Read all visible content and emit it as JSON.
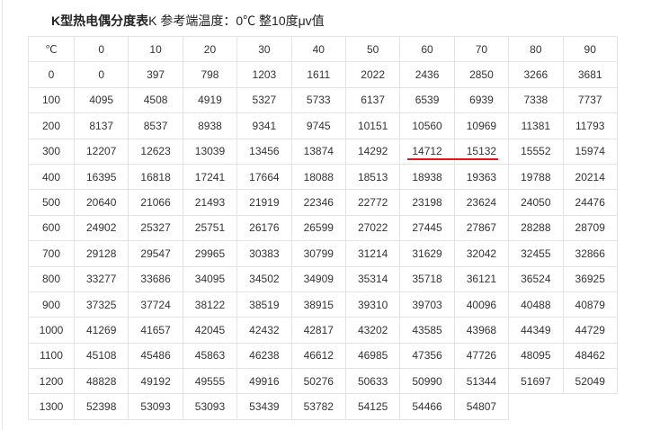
{
  "title": {
    "bold": "K型热电偶分度表",
    "rest": "K 参考端温度：0℃ 整10度μv值"
  },
  "table": {
    "header": [
      "℃",
      "0",
      "10",
      "20",
      "30",
      "40",
      "50",
      "60",
      "70",
      "80",
      "90"
    ],
    "rows": [
      [
        "0",
        "0",
        "397",
        "798",
        "1203",
        "1611",
        "2022",
        "2436",
        "2850",
        "3266",
        "3681"
      ],
      [
        "100",
        "4095",
        "4508",
        "4919",
        "5327",
        "5733",
        "6137",
        "6539",
        "6939",
        "7338",
        "7737"
      ],
      [
        "200",
        "8137",
        "8537",
        "8938",
        "9341",
        "9745",
        "10151",
        "10560",
        "10969",
        "11381",
        "11793"
      ],
      [
        "300",
        "12207",
        "12623",
        "13039",
        "13456",
        "13874",
        "14292",
        "14712",
        "15132",
        "15552",
        "15974"
      ],
      [
        "400",
        "16395",
        "16818",
        "17241",
        "17664",
        "18088",
        "18513",
        "18938",
        "19363",
        "19788",
        "20214"
      ],
      [
        "500",
        "20640",
        "21066",
        "21493",
        "21919",
        "22346",
        "22772",
        "23198",
        "23624",
        "24050",
        "24476"
      ],
      [
        "600",
        "24902",
        "25327",
        "25751",
        "26176",
        "26599",
        "27022",
        "27445",
        "27867",
        "28288",
        "28709"
      ],
      [
        "700",
        "29128",
        "29547",
        "29965",
        "30383",
        "30799",
        "31214",
        "31629",
        "32042",
        "32455",
        "32866"
      ],
      [
        "800",
        "33277",
        "33686",
        "34095",
        "34502",
        "34909",
        "35314",
        "35718",
        "36121",
        "36524",
        "36925"
      ],
      [
        "900",
        "37325",
        "37724",
        "38122",
        "38519",
        "38915",
        "39310",
        "39703",
        "40096",
        "40488",
        "40879"
      ],
      [
        "1000",
        "41269",
        "41657",
        "42045",
        "42432",
        "42817",
        "43202",
        "43585",
        "43968",
        "44349",
        "44729"
      ],
      [
        "1100",
        "45108",
        "45486",
        "45863",
        "46238",
        "46612",
        "46985",
        "47356",
        "47726",
        "48095",
        "48462"
      ],
      [
        "1200",
        "48828",
        "49192",
        "49555",
        "49916",
        "50276",
        "50633",
        "50990",
        "51344",
        "51697",
        "52049"
      ],
      [
        "1300",
        "52398",
        "53093",
        "53093",
        "53439",
        "53782",
        "54125",
        "54466",
        "54807"
      ]
    ]
  },
  "annotation": {
    "underline_color": "#e8141a",
    "underlined_cells": [
      "14712",
      "15132"
    ]
  }
}
